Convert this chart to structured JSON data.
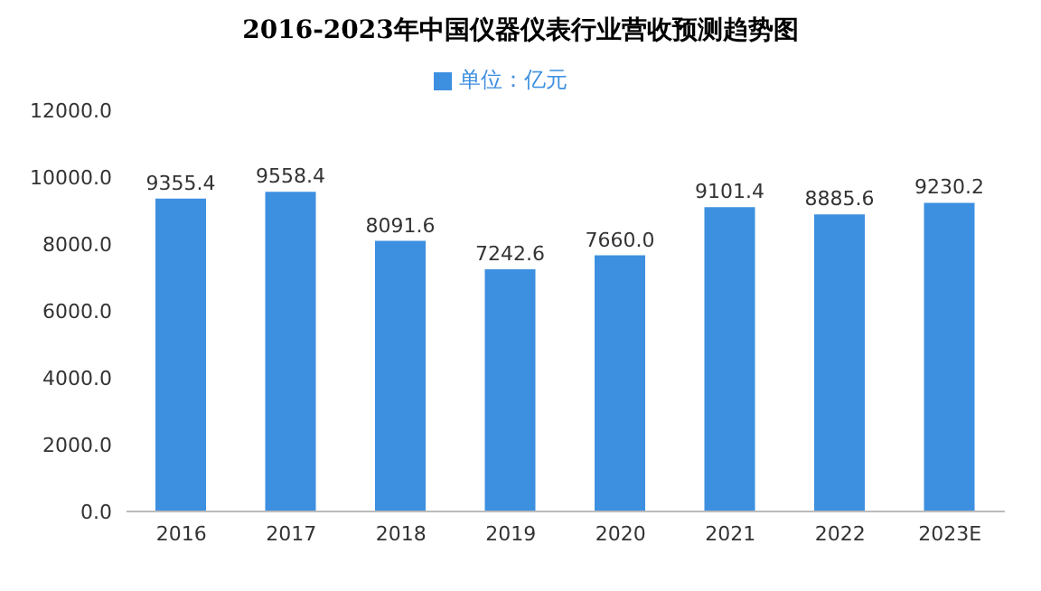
{
  "chart_data": {
    "type": "bar",
    "title": "2016-2023年中国仪器仪表行业营收预测趋势图",
    "categories": [
      "2016",
      "2017",
      "2018",
      "2019",
      "2020",
      "2021",
      "2022",
      "2023E"
    ],
    "series": [
      {
        "name": "单位：亿元",
        "color": "#3d8fe0",
        "values": [
          9355.4,
          9558.4,
          8091.6,
          7242.6,
          7660.0,
          9101.4,
          8885.6,
          9230.2
        ],
        "value_labels": [
          "9355.4",
          "9558.4",
          "8091.6",
          "7242.6",
          "7660.0",
          "9101.4",
          "8885.6",
          "9230.2"
        ]
      }
    ],
    "ylim": [
      0,
      12000
    ],
    "yticks": [
      {
        "value": 0,
        "label": "0.0"
      },
      {
        "value": 2000,
        "label": "2000.0"
      },
      {
        "value": 4000,
        "label": "4000.0"
      },
      {
        "value": 6000,
        "label": "6000.0"
      },
      {
        "value": 8000,
        "label": "8000.0"
      },
      {
        "value": 10000,
        "label": "10000.0"
      },
      {
        "value": 12000,
        "label": "12000.0"
      }
    ],
    "legend": "top",
    "grid": false
  }
}
